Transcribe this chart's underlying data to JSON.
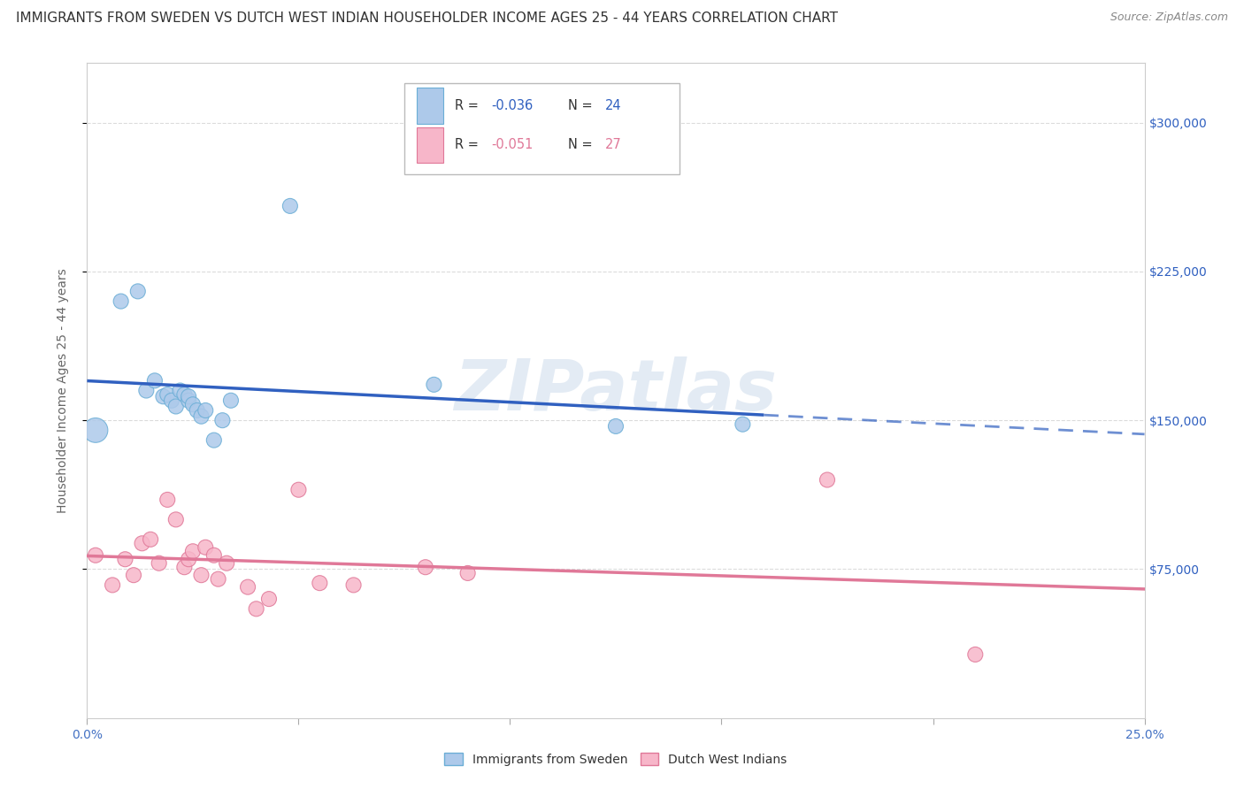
{
  "title": "IMMIGRANTS FROM SWEDEN VS DUTCH WEST INDIAN HOUSEHOLDER INCOME AGES 25 - 44 YEARS CORRELATION CHART",
  "source": "Source: ZipAtlas.com",
  "ylabel": "Householder Income Ages 25 - 44 years",
  "ytick_vals": [
    75000,
    150000,
    225000,
    300000
  ],
  "ytick_labels_right": [
    "$75,000",
    "$150,000",
    "$225,000",
    "$300,000"
  ],
  "xlim": [
    0.0,
    0.25
  ],
  "ylim": [
    0,
    330000
  ],
  "xtick_vals": [
    0.0,
    0.05,
    0.1,
    0.15,
    0.2,
    0.25
  ],
  "xtick_labels": [
    "0.0%",
    "",
    "",
    "",
    "",
    "25.0%"
  ],
  "sweden_color": "#adc9ea",
  "sweden_edge_color": "#6baed6",
  "dutch_color": "#f7b6c9",
  "dutch_edge_color": "#e07898",
  "trend_sweden_color": "#3060c0",
  "trend_dutch_color": "#e07898",
  "watermark": "ZIPatlas",
  "sweden_x": [
    0.002,
    0.008,
    0.012,
    0.014,
    0.016,
    0.018,
    0.019,
    0.02,
    0.021,
    0.022,
    0.023,
    0.024,
    0.024,
    0.025,
    0.026,
    0.027,
    0.028,
    0.03,
    0.032,
    0.034,
    0.048,
    0.082,
    0.125,
    0.155
  ],
  "sweden_y": [
    145000,
    210000,
    215000,
    165000,
    170000,
    162000,
    163000,
    160000,
    157000,
    165000,
    163000,
    160000,
    162000,
    158000,
    155000,
    152000,
    155000,
    140000,
    150000,
    160000,
    258000,
    168000,
    147000,
    148000
  ],
  "sweden_sizes": [
    400,
    150,
    150,
    150,
    150,
    150,
    150,
    150,
    150,
    150,
    150,
    150,
    150,
    150,
    150,
    150,
    150,
    150,
    150,
    150,
    150,
    150,
    150,
    150
  ],
  "dutch_x": [
    0.002,
    0.006,
    0.009,
    0.011,
    0.013,
    0.015,
    0.017,
    0.019,
    0.021,
    0.023,
    0.024,
    0.025,
    0.027,
    0.028,
    0.03,
    0.031,
    0.033,
    0.038,
    0.04,
    0.043,
    0.05,
    0.055,
    0.063,
    0.08,
    0.09,
    0.175,
    0.21
  ],
  "dutch_y": [
    82000,
    67000,
    80000,
    72000,
    88000,
    90000,
    78000,
    110000,
    100000,
    76000,
    80000,
    84000,
    72000,
    86000,
    82000,
    70000,
    78000,
    66000,
    55000,
    60000,
    115000,
    68000,
    67000,
    76000,
    73000,
    120000,
    32000
  ],
  "dutch_sizes": [
    150,
    150,
    150,
    150,
    150,
    150,
    150,
    150,
    150,
    150,
    150,
    150,
    150,
    150,
    150,
    150,
    150,
    150,
    150,
    150,
    150,
    150,
    150,
    150,
    150,
    150,
    150
  ],
  "background_color": "#ffffff",
  "grid_color": "#cccccc",
  "title_fontsize": 11,
  "source_fontsize": 9,
  "ylabel_fontsize": 10,
  "tick_fontsize": 10,
  "legend_sweden_label": "Immigrants from Sweden",
  "legend_dutch_label": "Dutch West Indians",
  "legend_R_sweden": "-0.036",
  "legend_N_sweden": "24",
  "legend_R_dutch": "-0.051",
  "legend_N_dutch": "27"
}
